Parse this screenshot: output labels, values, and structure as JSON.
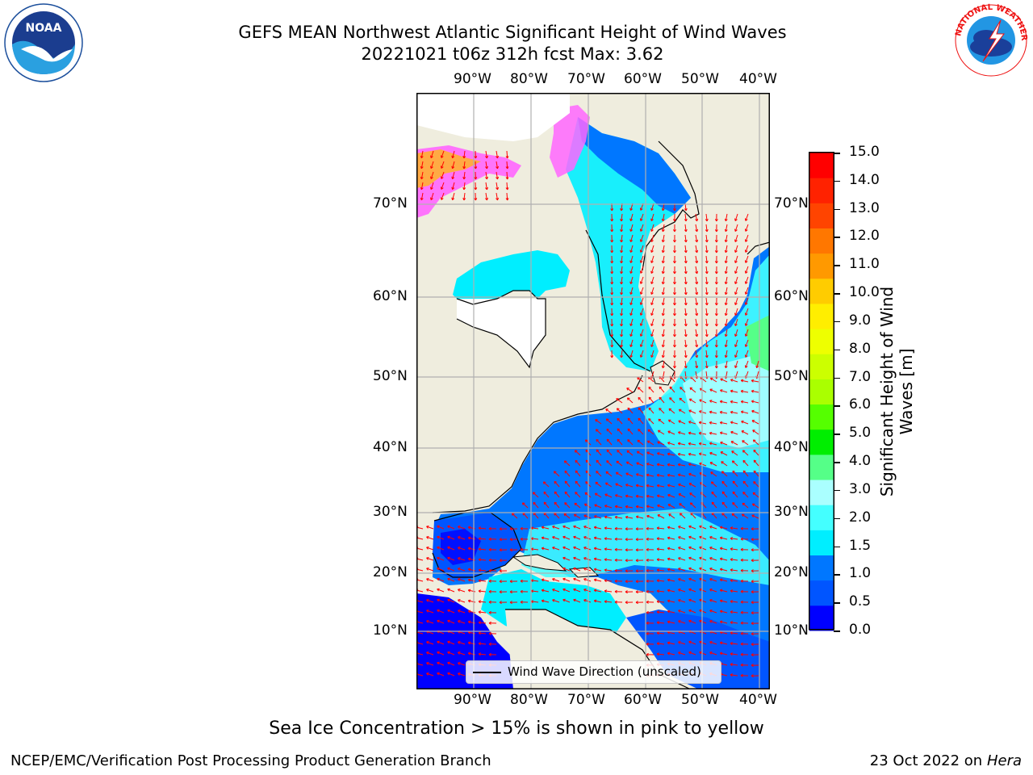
{
  "title_line1": "GEFS MEAN Northwest Atlantic Significant Height of Wind Waves",
  "title_line2": "20221021 t06z 312h fcst   Max: 3.62",
  "logos": {
    "left": "NOAA",
    "right": "NATIONAL WEATHER SERVICE"
  },
  "longitude_labels": [
    "90°W",
    "80°W",
    "70°W",
    "60°W",
    "50°W",
    "40°W"
  ],
  "latitude_labels": [
    "70°N",
    "60°N",
    "50°N",
    "40°N",
    "30°N",
    "20°N",
    "10°N"
  ],
  "legend_label": "Wind Wave Direction (unscaled)",
  "caption": "Sea Ice Concentration > 15% is shown in pink to yellow",
  "footer_left": "NCEP/EMC/Verification Post Processing Product Generation Branch",
  "footer_right_date": "23 Oct 2022 on",
  "footer_right_machine": "Hera",
  "colorbar": {
    "label": "Significant Height of Wind Waves [m]",
    "ticks": [
      "15.0",
      "14.0",
      "13.0",
      "12.0",
      "11.0",
      "10.0",
      "9.0",
      "8.0",
      "7.0",
      "6.0",
      "5.0",
      "4.0",
      "3.0",
      "2.0",
      "1.5",
      "1.0",
      "0.5",
      "0.0"
    ],
    "colors": [
      "#0000ff",
      "#0055ff",
      "#0077ff",
      "#00eeff",
      "#44ffff",
      "#aaffff",
      "#55ff88",
      "#00ee00",
      "#55ff00",
      "#aaff00",
      "#ccff00",
      "#eeff00",
      "#ffee00",
      "#ffcc00",
      "#ff9900",
      "#ff7700",
      "#ff4400",
      "#ff2200",
      "#ff0000"
    ]
  },
  "colors": {
    "land": "#efedde",
    "arrows": "#ff0000",
    "grid": "#b0b0b0"
  }
}
